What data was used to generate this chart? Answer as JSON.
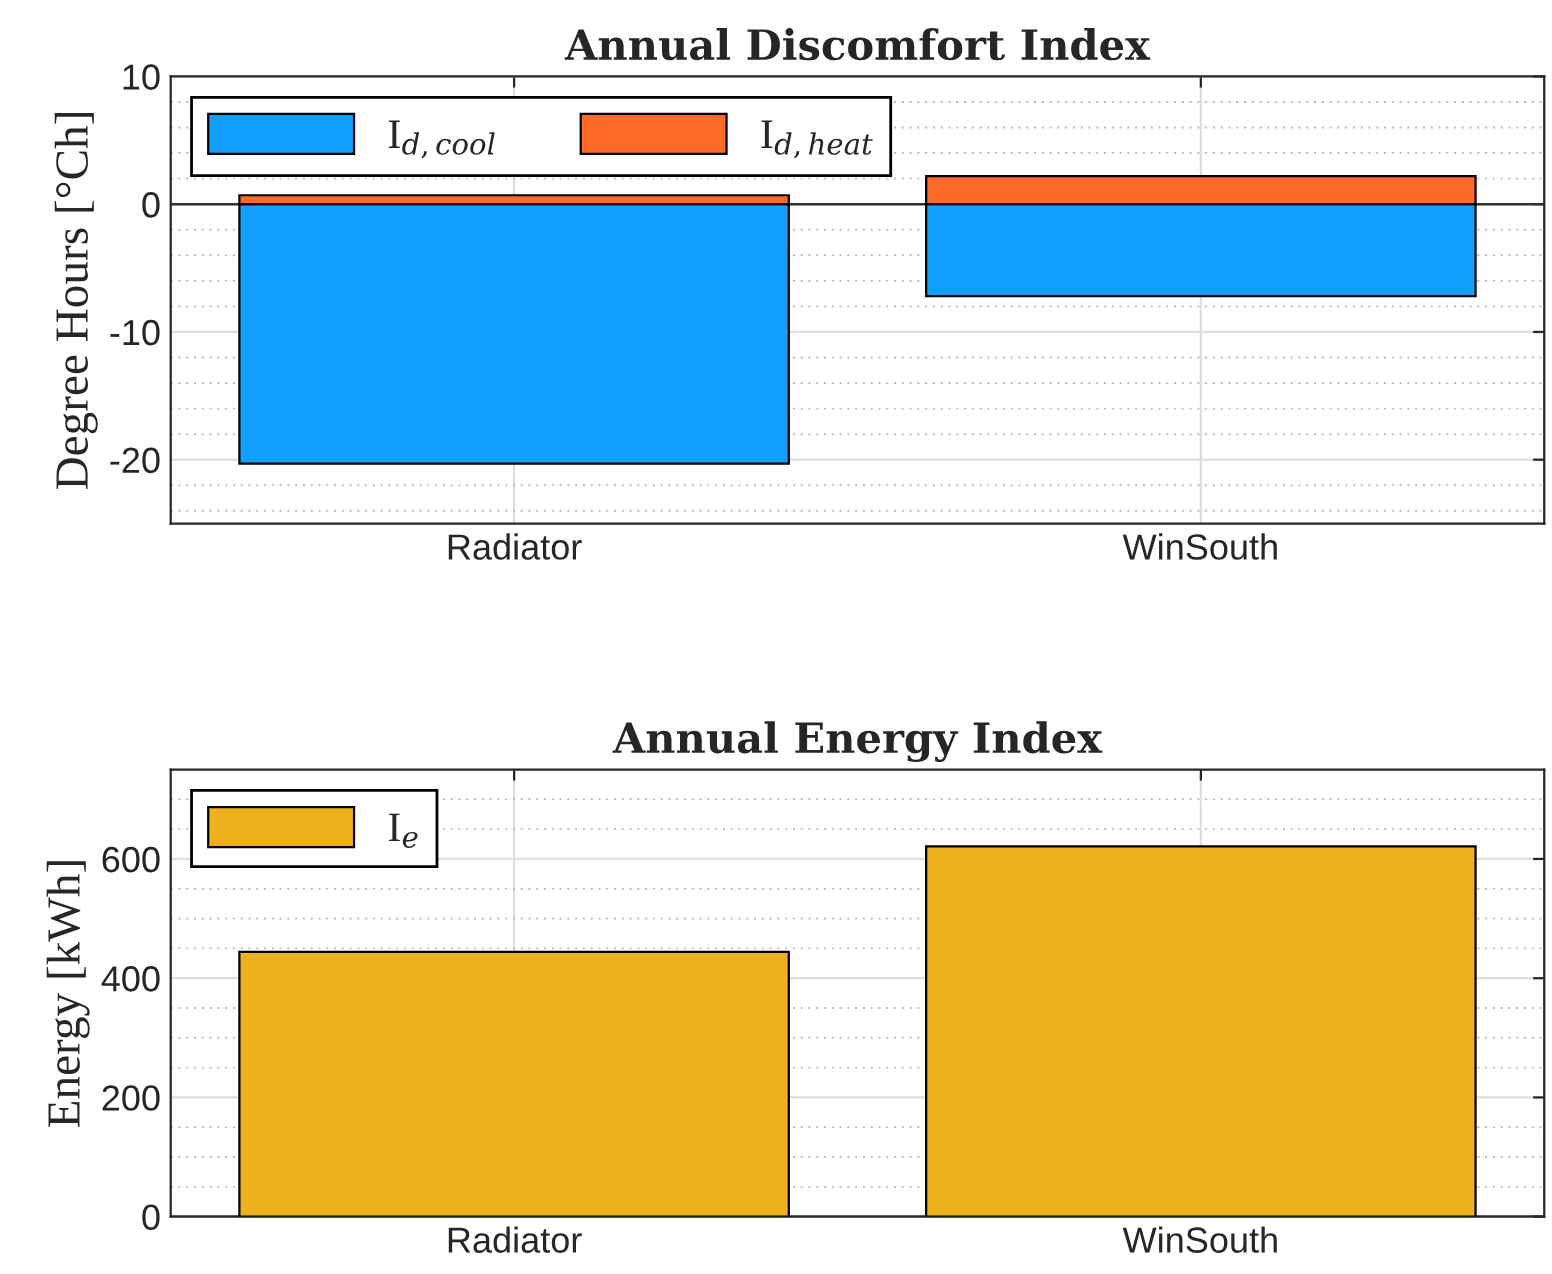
{
  "chart_data": [
    {
      "type": "bar",
      "title": "Annual Discomfort Index",
      "ylabel": "Degree Hours [°Ch]",
      "categories": [
        "Radiator",
        "WinSouth"
      ],
      "stacked": true,
      "series": [
        {
          "name": "I$_{d,cool}$",
          "color": "#139fff",
          "values": [
            -20.3,
            -7.2
          ]
        },
        {
          "name": "I$_{d,heat}$",
          "color": "#ff6929",
          "values": [
            0.7,
            2.2
          ]
        }
      ],
      "ylim": [
        -25,
        10
      ],
      "yticks": [
        -20,
        -10,
        0,
        10
      ],
      "grid": true,
      "legend": "top left"
    },
    {
      "type": "bar",
      "title": "Annual Energy Index",
      "ylabel": "Energy [kWh]",
      "categories": [
        "Radiator",
        "WinSouth"
      ],
      "series": [
        {
          "name": "I$_{e}$",
          "color": "#edb120",
          "values": [
            444,
            621
          ]
        }
      ],
      "ylim": [
        0,
        750
      ],
      "yticks": [
        0,
        200,
        400,
        600
      ],
      "grid": true,
      "legend": "top left"
    }
  ]
}
